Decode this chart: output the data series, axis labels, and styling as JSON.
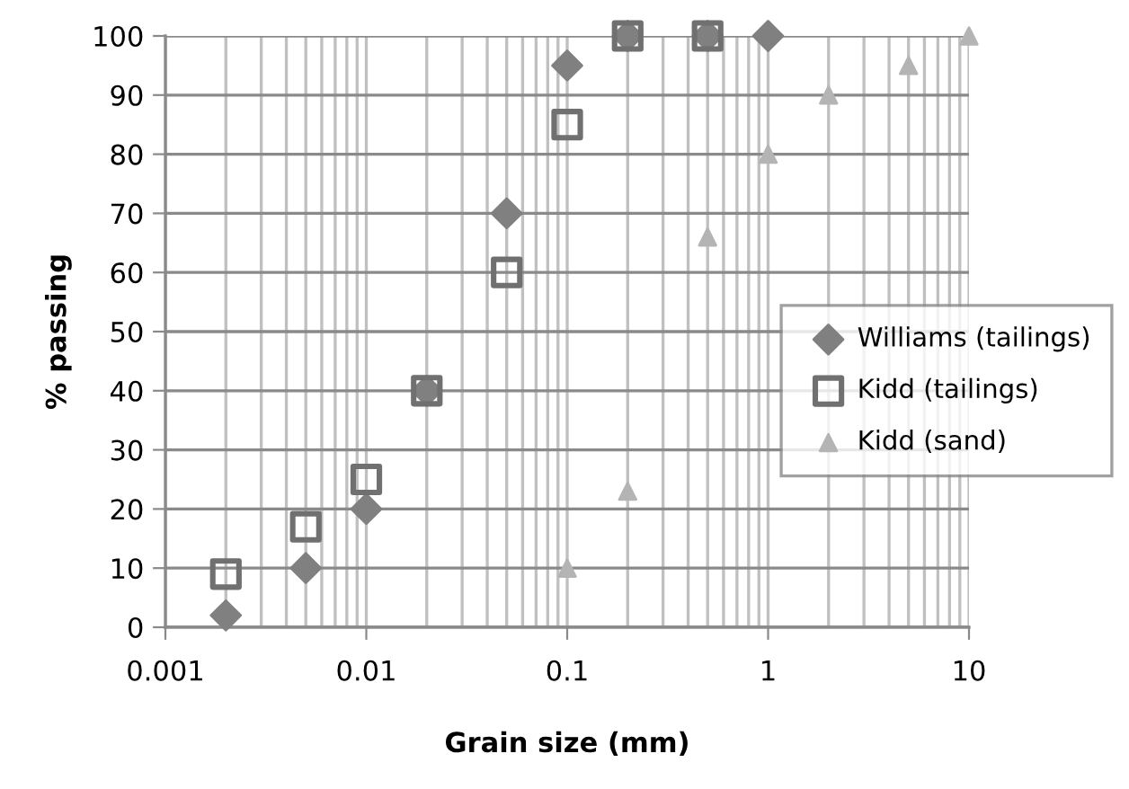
{
  "chart_data": {
    "type": "scatter",
    "xlabel": "Grain size (mm)",
    "ylabel": "% passing",
    "log": "x",
    "xlim": [
      0.001,
      10
    ],
    "xticks": [
      0.001,
      0.01,
      0.1,
      1,
      10
    ],
    "ylim": [
      0,
      100
    ],
    "yticks": [
      0,
      10,
      20,
      30,
      40,
      50,
      60,
      70,
      80,
      90,
      100
    ],
    "grid": true,
    "legend": "right",
    "series": [
      {
        "name": "Williams (tailings)",
        "color": "#808080",
        "marker": "diamond",
        "x": [
          0.002,
          0.005,
          0.01,
          0.02,
          0.05,
          0.1,
          0.2,
          0.5,
          1
        ],
        "values": [
          2,
          10,
          20,
          40,
          70,
          95,
          100,
          100,
          100
        ]
      },
      {
        "name": "Kidd (tailings)",
        "color": "#707070",
        "marker": "square",
        "x": [
          0.002,
          0.005,
          0.01,
          0.02,
          0.05,
          0.1,
          0.2,
          0.5
        ],
        "values": [
          9,
          17,
          25,
          40,
          60,
          85,
          100,
          100
        ]
      },
      {
        "name": "Kidd (sand)",
        "color": "#b4b4b4",
        "marker": "triangle",
        "x": [
          0.1,
          0.2,
          0.5,
          1,
          2,
          5,
          10
        ],
        "values": [
          10,
          23,
          66,
          80,
          90,
          95,
          100
        ]
      }
    ]
  }
}
